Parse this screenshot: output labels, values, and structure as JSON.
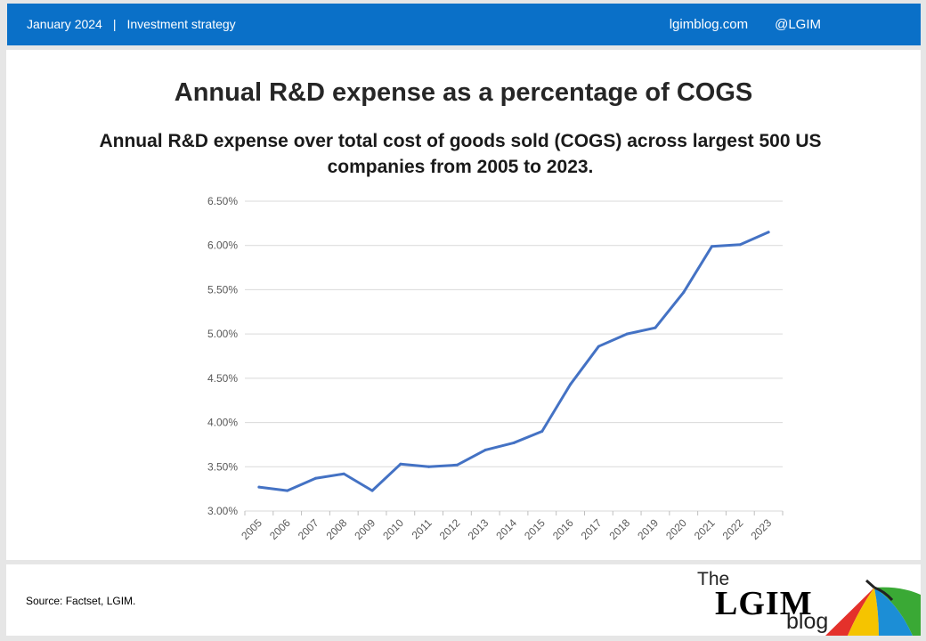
{
  "header": {
    "date": "January 2024",
    "separator": "|",
    "category": "Investment strategy",
    "site": "lgimblog.com",
    "handle": "@LGIM"
  },
  "footer": {
    "source": "Source: Factset, LGIM.",
    "logo": {
      "the": "The",
      "lgim": "LGIM",
      "blog": "blog"
    }
  },
  "colors": {
    "header": "#0a70c8",
    "line": "#4472c4",
    "grid": "#d9d9d9"
  },
  "chart_data": {
    "type": "line",
    "title": "Annual R&D expense as a percentage of COGS",
    "subtitle": "Annual R&D expense over total cost of goods sold (COGS) across largest 500 US companies from 2005 to 2023.",
    "xlabel": "",
    "ylabel": "",
    "ylim": [
      3.0,
      6.5
    ],
    "yticks": [
      "3.00%",
      "3.50%",
      "4.00%",
      "4.50%",
      "5.00%",
      "5.50%",
      "6.00%",
      "6.50%"
    ],
    "categories": [
      "2005",
      "2006",
      "2007",
      "2008",
      "2009",
      "2010",
      "2011",
      "2012",
      "2013",
      "2014",
      "2015",
      "2016",
      "2017",
      "2018",
      "2019",
      "2020",
      "2021",
      "2022",
      "2023"
    ],
    "series": [
      {
        "values": [
          3.27,
          3.23,
          3.37,
          3.42,
          3.23,
          3.53,
          3.5,
          3.52,
          3.69,
          3.77,
          3.9,
          4.43,
          4.86,
          5.0,
          5.07,
          5.47,
          5.99,
          6.01,
          6.15
        ]
      }
    ],
    "grid": true,
    "legend": "none"
  }
}
